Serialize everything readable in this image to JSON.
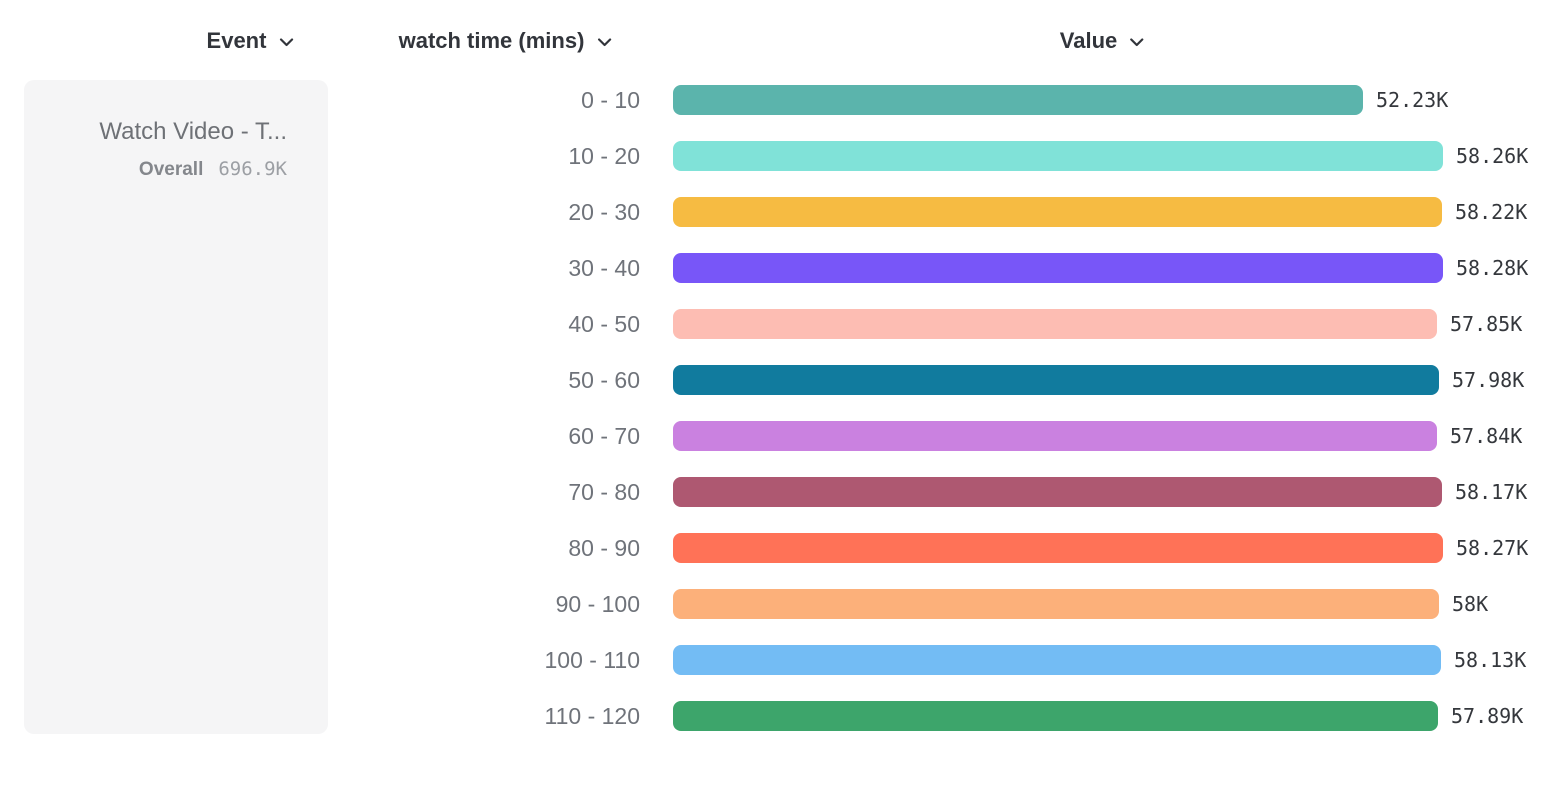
{
  "headers": {
    "event": {
      "label": "Event"
    },
    "breakdown": {
      "label": "watch time (mins)"
    },
    "value": {
      "label": "Value"
    }
  },
  "legend": {
    "event_name": "Watch Video - T...",
    "overall_label": "Overall",
    "overall_value": "696.9K"
  },
  "chart_data": {
    "type": "bar",
    "orientation": "horizontal",
    "title": "",
    "xlabel": "Value",
    "ylabel": "watch time (mins)",
    "xlim": [
      0,
      58280
    ],
    "grid": false,
    "legend_position": "left",
    "categories": [
      "0 - 10",
      "10 - 20",
      "20 - 30",
      "30 - 40",
      "40 - 50",
      "50 - 60",
      "60 - 70",
      "70 - 80",
      "80 - 90",
      "90 - 100",
      "100 - 110",
      "110 - 120"
    ],
    "values": [
      52230,
      58260,
      58220,
      58280,
      57850,
      57980,
      57840,
      58170,
      58270,
      58000,
      58130,
      57890
    ],
    "value_labels": [
      "52.23K",
      "58.26K",
      "58.22K",
      "58.28K",
      "57.85K",
      "57.98K",
      "57.84K",
      "58.17K",
      "58.27K",
      "58K",
      "58.13K",
      "57.89K"
    ],
    "bar_colors": [
      "#5bb4ac",
      "#80e2d8",
      "#f6bb42",
      "#7856f8",
      "#fdbdb3",
      "#117b9e",
      "#ca81e0",
      "#ae5871",
      "#ff7257",
      "#fcb07a",
      "#73bcf4",
      "#3da56b"
    ]
  },
  "colors": {
    "header_text": "#32353b",
    "category_text": "#6f737a",
    "value_text": "#34373c",
    "card_background": "#f5f5f6",
    "card_title_text": "#6e7176",
    "overall_label_text": "#84878c",
    "overall_value_text": "#9c9fa4"
  },
  "icons": {
    "chevron_down": "v"
  }
}
